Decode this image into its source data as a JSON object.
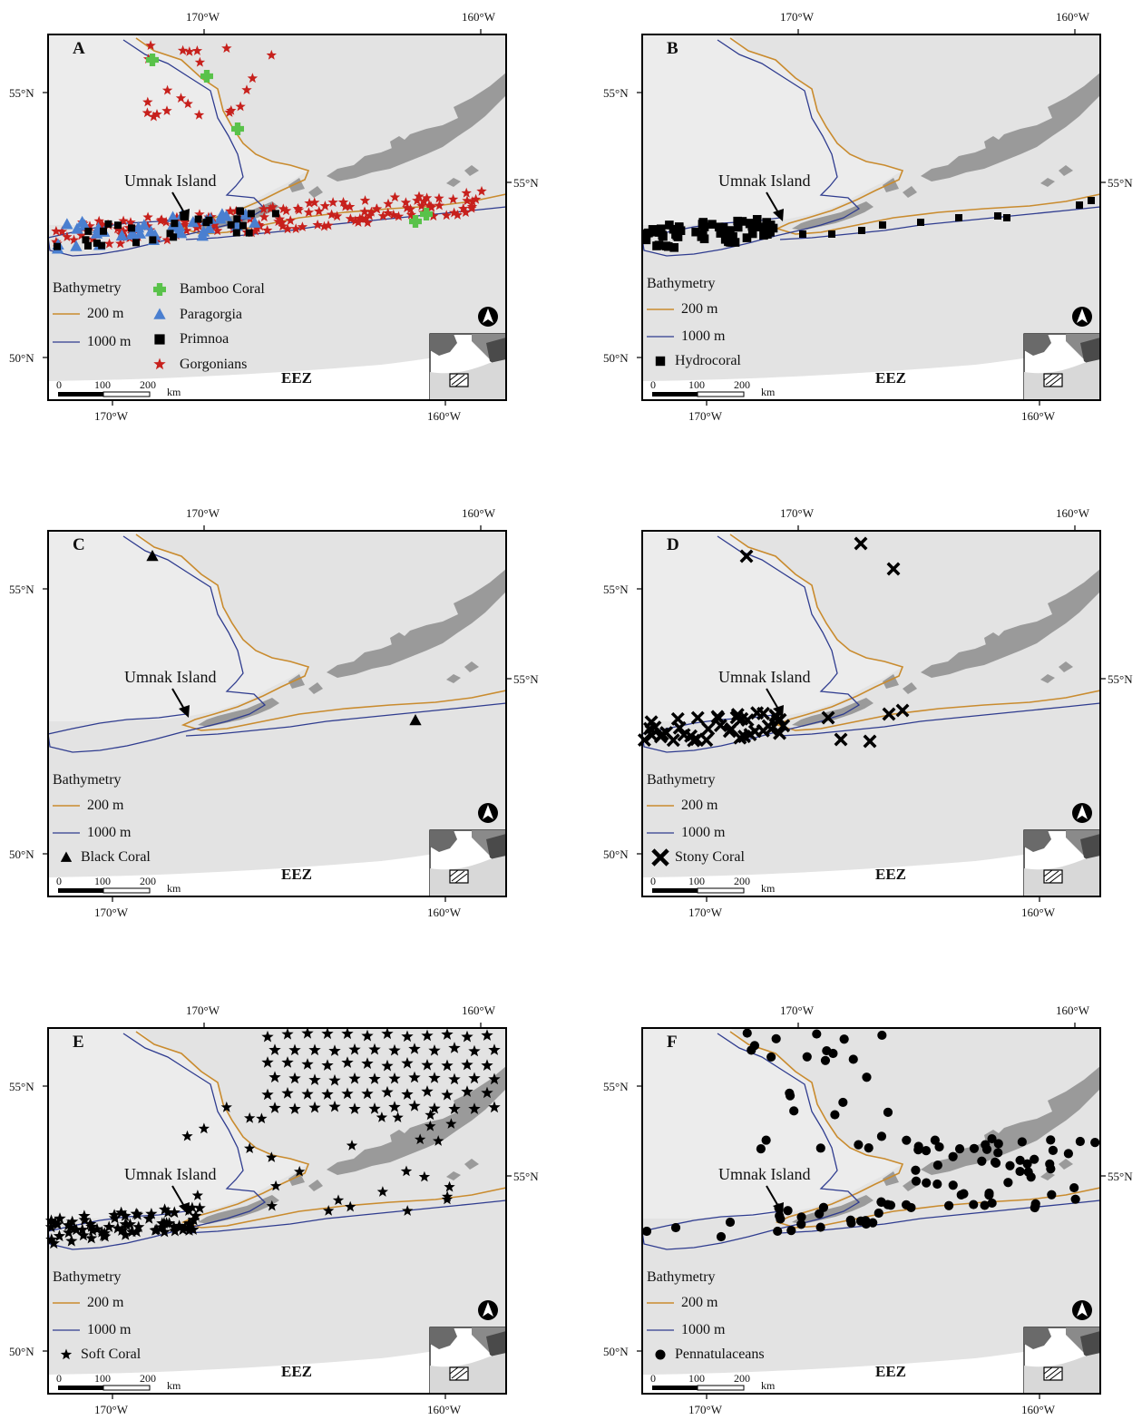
{
  "axes": {
    "lon_labels": [
      "170°W",
      "160°W"
    ],
    "lat_labels": [
      "55°N",
      "50°N"
    ]
  },
  "common": {
    "island_label": "Umnak Island",
    "eez_label": "EEZ",
    "bathymetry_title": "Bathymetry",
    "contour_200": "200 m",
    "contour_1000": "1000 m",
    "scale": {
      "zero": "0",
      "mid": "100",
      "max": "200",
      "unit": "km"
    }
  },
  "colors": {
    "land": "#9a9a9a",
    "sea": "#e3e3e3",
    "contour_200": "#c98b2e",
    "contour_1000": "#2f3c8f",
    "bamboo": "#59c24a",
    "paragorgia": "#4a7fd0",
    "primnoa": "#000000",
    "gorgonian": "#c7201c"
  },
  "panels": [
    {
      "letter": "A",
      "legend": [
        {
          "label": "Bamboo Coral",
          "symbol": "cross",
          "color": "#59c24a"
        },
        {
          "label": "Paragorgia",
          "symbol": "triangle",
          "color": "#4a7fd0"
        },
        {
          "label": "Primnoa",
          "symbol": "square",
          "color": "#000000"
        },
        {
          "label": "Gorgonians",
          "symbol": "star",
          "color": "#c7201c"
        }
      ]
    },
    {
      "letter": "B",
      "legend": [
        {
          "label": "Hydrocoral",
          "symbol": "square",
          "color": "#000000"
        }
      ]
    },
    {
      "letter": "C",
      "legend": [
        {
          "label": "Black Coral",
          "symbol": "triangle",
          "color": "#000000"
        }
      ]
    },
    {
      "letter": "D",
      "legend": [
        {
          "label": "Stony Coral",
          "symbol": "xmark",
          "color": "#000000"
        }
      ]
    },
    {
      "letter": "E",
      "legend": [
        {
          "label": "Soft Coral",
          "symbol": "star",
          "color": "#000000"
        }
      ]
    },
    {
      "letter": "F",
      "legend": [
        {
          "label": "Pennatulaceans",
          "symbol": "circle",
          "color": "#000000"
        }
      ]
    }
  ]
}
